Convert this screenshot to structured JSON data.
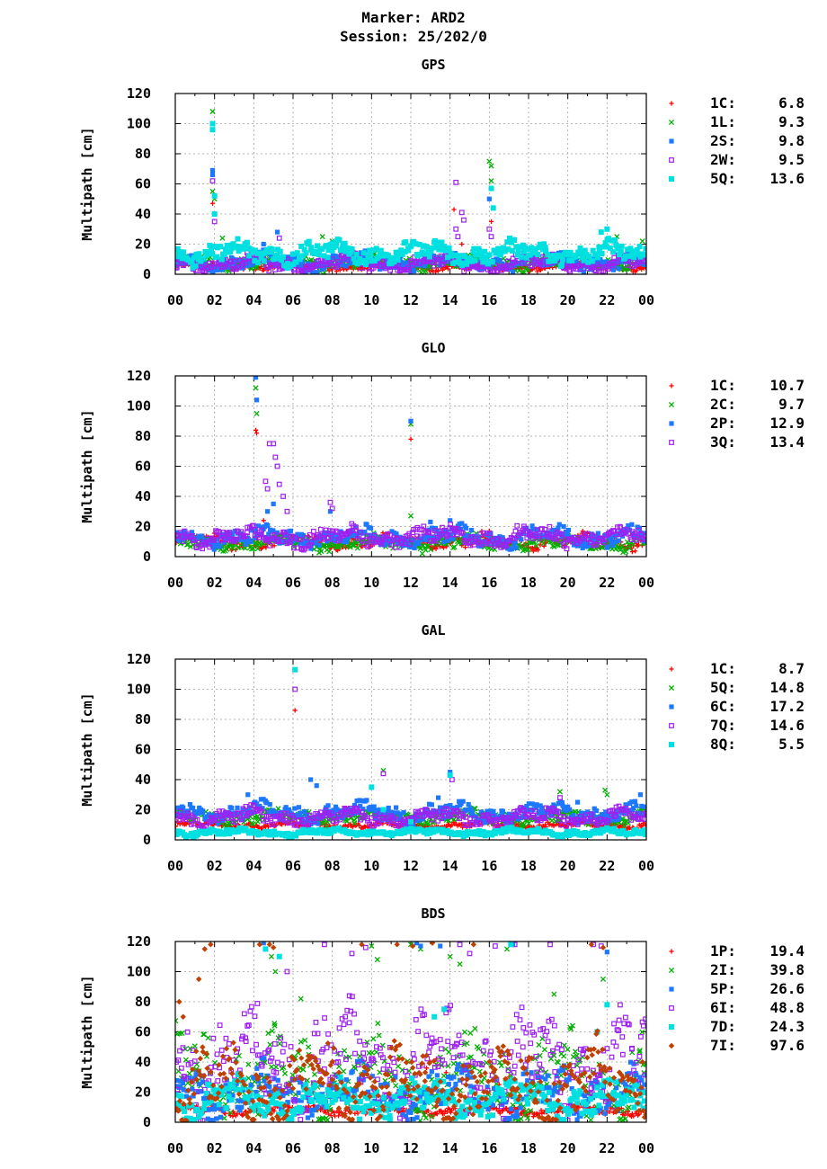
{
  "header": {
    "marker": "Marker: ARD2",
    "session": "Session: 25/202/0"
  },
  "colors": {
    "red": "#ff0000",
    "green": "#00b000",
    "blue": "#1e78ff",
    "purple": "#a020f0",
    "cyan": "#00e0e0",
    "orange": "#c04000"
  },
  "chart_data": [
    {
      "type": "scatter",
      "title": "GPS",
      "ylabel": "Multipath [cm]",
      "xlabel": "",
      "xlim": [
        0,
        24
      ],
      "ylim": [
        0,
        120
      ],
      "yticks": [
        "0",
        "20",
        "40",
        "60",
        "80",
        "100",
        "120"
      ],
      "xticks": [
        "00",
        "02",
        "04",
        "06",
        "08",
        "10",
        "12",
        "14",
        "16",
        "18",
        "20",
        "22",
        "00"
      ],
      "grid": true,
      "legend_position": "right",
      "series": [
        {
          "name": "1C:",
          "value": "6.8",
          "marker": "plus",
          "color": "#ff0000",
          "base": 5,
          "noise": 3,
          "points": [
            [
              1.9,
              47
            ],
            [
              2.0,
              40
            ],
            [
              14.2,
              43
            ],
            [
              16.1,
              35
            ],
            [
              5.3,
              14
            ],
            [
              14.6,
              20
            ]
          ]
        },
        {
          "name": "1L:",
          "value": "9.3",
          "marker": "cross",
          "color": "#00b000",
          "base": 8,
          "noise": 6,
          "points": [
            [
              1.9,
              108
            ],
            [
              1.9,
              55
            ],
            [
              2.0,
              50
            ],
            [
              2.4,
              24
            ],
            [
              7.5,
              25
            ],
            [
              8.0,
              22
            ],
            [
              16.0,
              75
            ],
            [
              16.1,
              72
            ],
            [
              16.1,
              62
            ],
            [
              22.5,
              25
            ],
            [
              23.8,
              22
            ]
          ]
        },
        {
          "name": "2S:",
          "value": "9.8",
          "marker": "square",
          "color": "#1e78ff",
          "base": 8,
          "noise": 7,
          "points": [
            [
              1.9,
              69
            ],
            [
              1.9,
              66
            ],
            [
              4.5,
              20
            ],
            [
              5.2,
              28
            ],
            [
              16.0,
              50
            ],
            [
              2.0,
              40
            ]
          ]
        },
        {
          "name": "2W:",
          "value": "9.5",
          "marker": "osquare",
          "color": "#a020f0",
          "base": 7,
          "noise": 7,
          "points": [
            [
              1.9,
              62
            ],
            [
              2.0,
              35
            ],
            [
              14.3,
              61
            ],
            [
              14.3,
              30
            ],
            [
              14.4,
              25
            ],
            [
              14.6,
              41
            ],
            [
              14.7,
              36
            ],
            [
              16.0,
              30
            ],
            [
              16.1,
              25
            ],
            [
              5.3,
              24
            ]
          ]
        },
        {
          "name": "5Q:",
          "value": "13.6",
          "marker": "fsquare",
          "color": "#00e0e0",
          "base": 14,
          "noise": 9,
          "points": [
            [
              1.9,
              100
            ],
            [
              1.9,
              96
            ],
            [
              2.0,
              52
            ],
            [
              2.0,
              40
            ],
            [
              16.1,
              57
            ],
            [
              16.2,
              44
            ],
            [
              22.0,
              30
            ],
            [
              21.7,
              28
            ]
          ]
        }
      ]
    },
    {
      "type": "scatter",
      "title": "GLO",
      "ylabel": "Multipath [cm]",
      "xlabel": "",
      "xlim": [
        0,
        24
      ],
      "ylim": [
        0,
        120
      ],
      "yticks": [
        "0",
        "20",
        "40",
        "60",
        "80",
        "100",
        "120"
      ],
      "xticks": [
        "00",
        "02",
        "04",
        "06",
        "08",
        "10",
        "12",
        "14",
        "16",
        "18",
        "20",
        "22",
        "00"
      ],
      "grid": true,
      "legend_position": "right",
      "series": [
        {
          "name": "1C:",
          "value": "10.7",
          "marker": "plus",
          "color": "#ff0000",
          "base": 10,
          "noise": 6,
          "points": [
            [
              4.1,
              84
            ],
            [
              4.15,
              82
            ],
            [
              12.0,
              78
            ],
            [
              4.5,
              24
            ],
            [
              16.0,
              17
            ]
          ]
        },
        {
          "name": "2C:",
          "value": "9.7",
          "marker": "cross",
          "color": "#00b000",
          "base": 9,
          "noise": 6,
          "points": [
            [
              4.1,
              112
            ],
            [
              4.15,
              95
            ],
            [
              12.0,
              27
            ],
            [
              12.0,
              88
            ]
          ]
        },
        {
          "name": "2P:",
          "value": "12.9",
          "marker": "square",
          "color": "#1e78ff",
          "base": 13,
          "noise": 8,
          "points": [
            [
              4.1,
              119
            ],
            [
              4.15,
              104
            ],
            [
              12.0,
              90
            ],
            [
              7.9,
              30
            ],
            [
              5.0,
              35
            ],
            [
              4.7,
              30
            ],
            [
              13.0,
              23
            ],
            [
              14.0,
              24
            ]
          ]
        },
        {
          "name": "3Q:",
          "value": "13.4",
          "marker": "osquare",
          "color": "#a020f0",
          "base": 13,
          "noise": 8,
          "points": [
            [
              4.8,
              75
            ],
            [
              5.0,
              75
            ],
            [
              5.1,
              66
            ],
            [
              5.2,
              60
            ],
            [
              4.6,
              50
            ],
            [
              4.7,
              45
            ],
            [
              5.3,
              48
            ],
            [
              5.5,
              40
            ],
            [
              5.7,
              30
            ],
            [
              7.9,
              36
            ],
            [
              8.0,
              32
            ]
          ]
        }
      ]
    },
    {
      "type": "scatter",
      "title": "GAL",
      "ylabel": "Multipath [cm]",
      "xlabel": "",
      "xlim": [
        0,
        24
      ],
      "ylim": [
        0,
        120
      ],
      "yticks": [
        "0",
        "20",
        "40",
        "60",
        "80",
        "100",
        "120"
      ],
      "xticks": [
        "00",
        "02",
        "04",
        "06",
        "08",
        "10",
        "12",
        "14",
        "16",
        "18",
        "20",
        "22",
        "00"
      ],
      "grid": true,
      "legend_position": "right",
      "series": [
        {
          "name": "1C:",
          "value": "8.7",
          "marker": "plus",
          "color": "#ff0000",
          "base": 10,
          "noise": 3,
          "points": [
            [
              6.1,
              86
            ]
          ]
        },
        {
          "name": "5Q:",
          "value": "14.8",
          "marker": "cross",
          "color": "#00b000",
          "base": 15,
          "noise": 6,
          "points": [
            [
              10.6,
              46
            ],
            [
              19.6,
              32
            ],
            [
              21.9,
              33
            ],
            [
              22.0,
              30
            ]
          ]
        },
        {
          "name": "6C:",
          "value": "17.2",
          "marker": "square",
          "color": "#1e78ff",
          "base": 18,
          "noise": 8,
          "points": [
            [
              6.9,
              40
            ],
            [
              7.2,
              36
            ],
            [
              3.7,
              30
            ],
            [
              13.4,
              28
            ],
            [
              14.0,
              45
            ],
            [
              20.5,
              25
            ],
            [
              23.7,
              30
            ]
          ]
        },
        {
          "name": "7Q:",
          "value": "14.6",
          "marker": "osquare",
          "color": "#a020f0",
          "base": 15,
          "noise": 7,
          "points": [
            [
              6.1,
              100
            ],
            [
              10.6,
              44
            ],
            [
              14.1,
              40
            ],
            [
              19.6,
              28
            ]
          ]
        },
        {
          "name": "8Q:",
          "value": "5.5",
          "marker": "fsquare",
          "color": "#00e0e0",
          "base": 5,
          "noise": 3,
          "points": [
            [
              6.1,
              113
            ],
            [
              14.0,
              43
            ],
            [
              10.6,
              20
            ],
            [
              10.0,
              35
            ],
            [
              12.0,
              12
            ]
          ]
        }
      ]
    },
    {
      "type": "scatter",
      "title": "BDS",
      "ylabel": "Multipath [cm]",
      "xlabel": "",
      "xlim": [
        0,
        24
      ],
      "ylim": [
        0,
        120
      ],
      "yticks": [
        "0",
        "20",
        "40",
        "60",
        "80",
        "100",
        "120"
      ],
      "xticks": [
        "00",
        "02",
        "04",
        "06",
        "08",
        "10",
        "12",
        "14",
        "16",
        "18",
        "20",
        "22",
        "00"
      ],
      "grid": true,
      "legend_position": "right",
      "series": [
        {
          "name": "1P:",
          "value": "19.4",
          "marker": "plus",
          "color": "#ff0000",
          "base": 8,
          "noise": 4,
          "points": [
            [
              13.0,
              40
            ],
            [
              13.3,
              42
            ],
            [
              13.5,
              38
            ],
            [
              13.8,
              33
            ],
            [
              12.8,
              36
            ],
            [
              14.1,
              30
            ],
            [
              16.5,
              25
            ],
            [
              17.0,
              30
            ]
          ]
        },
        {
          "name": "2I:",
          "value": "39.8",
          "marker": "cross",
          "color": "#00b000",
          "base": 30,
          "noise": 35,
          "points": [
            [
              4.9,
              110
            ],
            [
              5.1,
              100
            ],
            [
              6.4,
              82
            ],
            [
              10.0,
              117
            ],
            [
              10.3,
              108
            ],
            [
              12.0,
              118
            ],
            [
              12.5,
              115
            ],
            [
              14.0,
              110
            ],
            [
              14.5,
              105
            ],
            [
              16.9,
              115
            ],
            [
              19.3,
              85
            ],
            [
              21.8,
              95
            ]
          ]
        },
        {
          "name": "5P:",
          "value": "26.6",
          "marker": "square",
          "color": "#1e78ff",
          "base": 20,
          "noise": 20,
          "points": [
            [
              4.5,
              119
            ],
            [
              12.3,
              119
            ],
            [
              12.5,
              117
            ],
            [
              13.5,
              117
            ],
            [
              17.2,
              118
            ],
            [
              22.0,
              113
            ]
          ]
        },
        {
          "name": "6I:",
          "value": "48.8",
          "marker": "osquare",
          "color": "#a020f0",
          "base": 40,
          "noise": 40,
          "points": [
            [
              7.6,
              118
            ],
            [
              9.7,
              116
            ],
            [
              9.0,
              112
            ],
            [
              5.7,
              100
            ],
            [
              14.5,
              118
            ],
            [
              15.0,
              112
            ],
            [
              16.3,
              117
            ],
            [
              17.3,
              118
            ],
            [
              19.1,
              118
            ],
            [
              21.3,
              118
            ],
            [
              21.7,
              117
            ]
          ]
        },
        {
          "name": "7D:",
          "value": "24.3",
          "marker": "fsquare",
          "color": "#00e0e0",
          "base": 15,
          "noise": 15,
          "points": [
            [
              4.6,
              115
            ],
            [
              5.3,
              110
            ],
            [
              13.2,
              70
            ],
            [
              13.7,
              75
            ],
            [
              17.1,
              118
            ],
            [
              22.0,
              78
            ],
            [
              21.5,
              60
            ]
          ]
        },
        {
          "name": "7I:",
          "value": "97.6",
          "marker": "diamond",
          "color": "#c04000",
          "base": 25,
          "noise": 30,
          "points": [
            [
              0.2,
              80
            ],
            [
              0.4,
              70
            ],
            [
              1.2,
              95
            ],
            [
              1.5,
              115
            ],
            [
              1.8,
              118
            ],
            [
              4.3,
              118
            ],
            [
              4.8,
              118
            ],
            [
              5.0,
              116
            ],
            [
              9.5,
              118
            ],
            [
              11.3,
              118
            ],
            [
              12.1,
              117
            ],
            [
              13.1,
              119
            ],
            [
              15.2,
              118
            ],
            [
              21.2,
              118
            ],
            [
              21.8,
              116
            ],
            [
              23.8,
              40
            ]
          ]
        }
      ]
    }
  ]
}
